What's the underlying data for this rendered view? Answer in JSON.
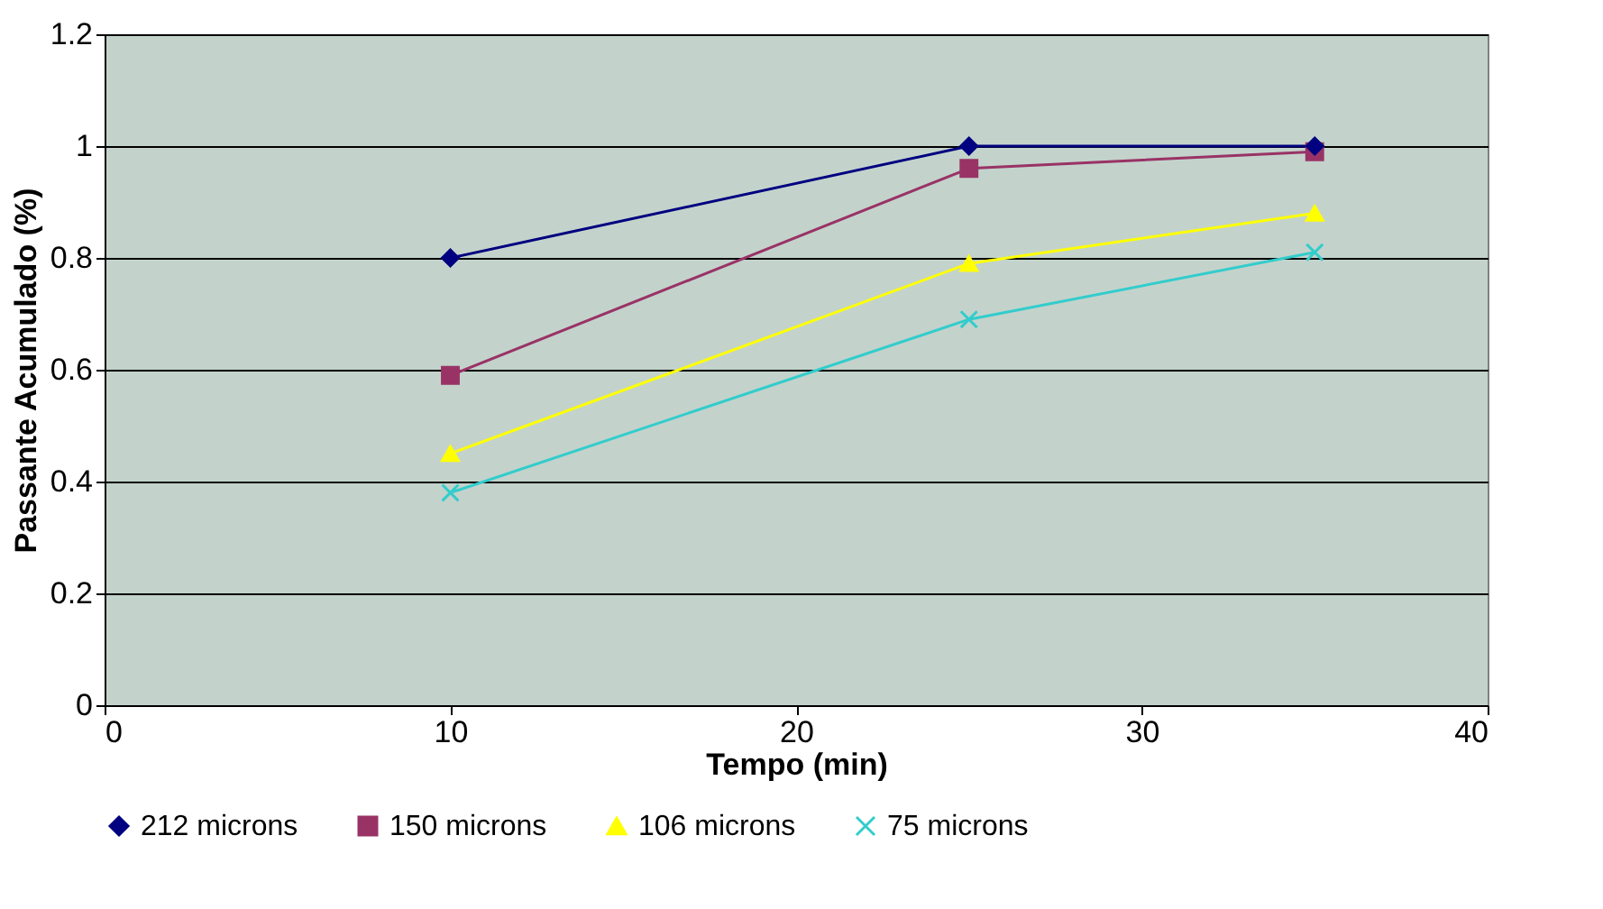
{
  "chart_data": {
    "type": "line",
    "xlabel": "Tempo (min)",
    "ylabel": "Passante Acumulado (%)",
    "x": [
      10,
      25,
      35
    ],
    "series": [
      {
        "name": "212 microns",
        "color": "#000080",
        "marker": "diamond",
        "values": [
          0.8,
          1.0,
          1.0
        ]
      },
      {
        "name": "150 microns",
        "color": "#993366",
        "marker": "square",
        "values": [
          0.59,
          0.96,
          0.99
        ]
      },
      {
        "name": "106 microns",
        "color": "#ffff00",
        "marker": "triangle",
        "values": [
          0.45,
          0.79,
          0.88
        ]
      },
      {
        "name": "75 microns",
        "color": "#33cccc",
        "marker": "cross",
        "values": [
          0.38,
          0.69,
          0.81
        ]
      }
    ],
    "xlim": [
      0,
      40
    ],
    "xticks": [
      0,
      10,
      20,
      30,
      40
    ],
    "ylim": [
      0,
      1.2
    ],
    "yticks": [
      0,
      0.2,
      0.4,
      0.6,
      0.8,
      1,
      1.2
    ],
    "grid": "y",
    "legend": "bottom"
  }
}
